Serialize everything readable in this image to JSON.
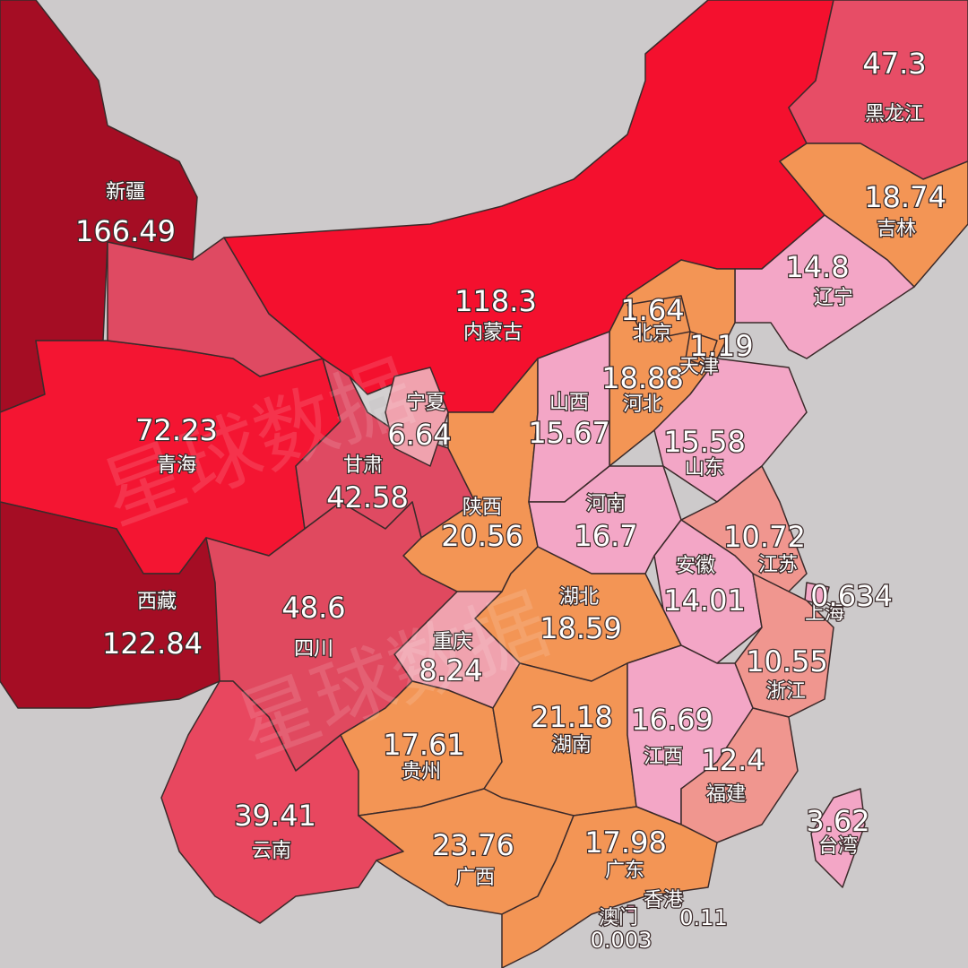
{
  "map": {
    "watermark": "星球数据",
    "regions": [
      {
        "name": "新疆",
        "value": 166.49,
        "color": "#a50d24"
      },
      {
        "name": "青海",
        "value": 72.23,
        "color": "#f41532"
      },
      {
        "name": "西藏",
        "value": 122.84,
        "color": "#a50d24"
      },
      {
        "name": "甘肃",
        "value": 42.58,
        "color": "#df4a62"
      },
      {
        "name": "内蒙古",
        "value": 118.3,
        "color": "#f4102e"
      },
      {
        "name": "黑龙江",
        "value": 47.3,
        "color": "#e74d66"
      },
      {
        "name": "吉林",
        "value": 18.74,
        "color": "#f39555"
      },
      {
        "name": "辽宁",
        "value": 14.8,
        "color": "#f3a6c6"
      },
      {
        "name": "河北",
        "value": 18.88,
        "color": "#f39555"
      },
      {
        "name": "北京",
        "value": 1.64,
        "color": "#f39555"
      },
      {
        "name": "天津",
        "value": 1.19,
        "color": "#f39555"
      },
      {
        "name": "宁夏",
        "value": 6.64,
        "color": "#f0a2ae"
      },
      {
        "name": "陕西",
        "value": 20.56,
        "color": "#f39555"
      },
      {
        "name": "山西",
        "value": 15.67,
        "color": "#f3a6c6"
      },
      {
        "name": "山东",
        "value": 15.58,
        "color": "#f3a6c6"
      },
      {
        "name": "河南",
        "value": 16.7,
        "color": "#f3a6c6"
      },
      {
        "name": "江苏",
        "value": 10.72,
        "color": "#f0968f"
      },
      {
        "name": "安徽",
        "value": 14.01,
        "color": "#f3a6c6"
      },
      {
        "name": "上海",
        "value": 0.634,
        "color": "#f3a6c6"
      },
      {
        "name": "浙江",
        "value": 10.55,
        "color": "#f0968f"
      },
      {
        "name": "湖北",
        "value": 18.59,
        "color": "#f39555"
      },
      {
        "name": "重庆",
        "value": 8.24,
        "color": "#f0a2ae"
      },
      {
        "name": "四川",
        "value": 48.6,
        "color": "#e0495f"
      },
      {
        "name": "云南",
        "value": 39.41,
        "color": "#e8475f"
      },
      {
        "name": "贵州",
        "value": 17.61,
        "color": "#f39555"
      },
      {
        "name": "湖南",
        "value": 21.18,
        "color": "#f39555"
      },
      {
        "name": "江西",
        "value": 16.69,
        "color": "#f3a6c6"
      },
      {
        "name": "福建",
        "value": 12.4,
        "color": "#f0968f"
      },
      {
        "name": "广西",
        "value": 23.76,
        "color": "#f39555"
      },
      {
        "name": "广东",
        "value": 17.98,
        "color": "#f39555"
      },
      {
        "name": "台湾",
        "value": 3.62,
        "color": "#f3a6c6"
      },
      {
        "name": "香港",
        "value": 0.11,
        "color": "#f3a6c6"
      },
      {
        "name": "澳门",
        "value": 0.003,
        "color": "#f3a6c6"
      }
    ]
  }
}
